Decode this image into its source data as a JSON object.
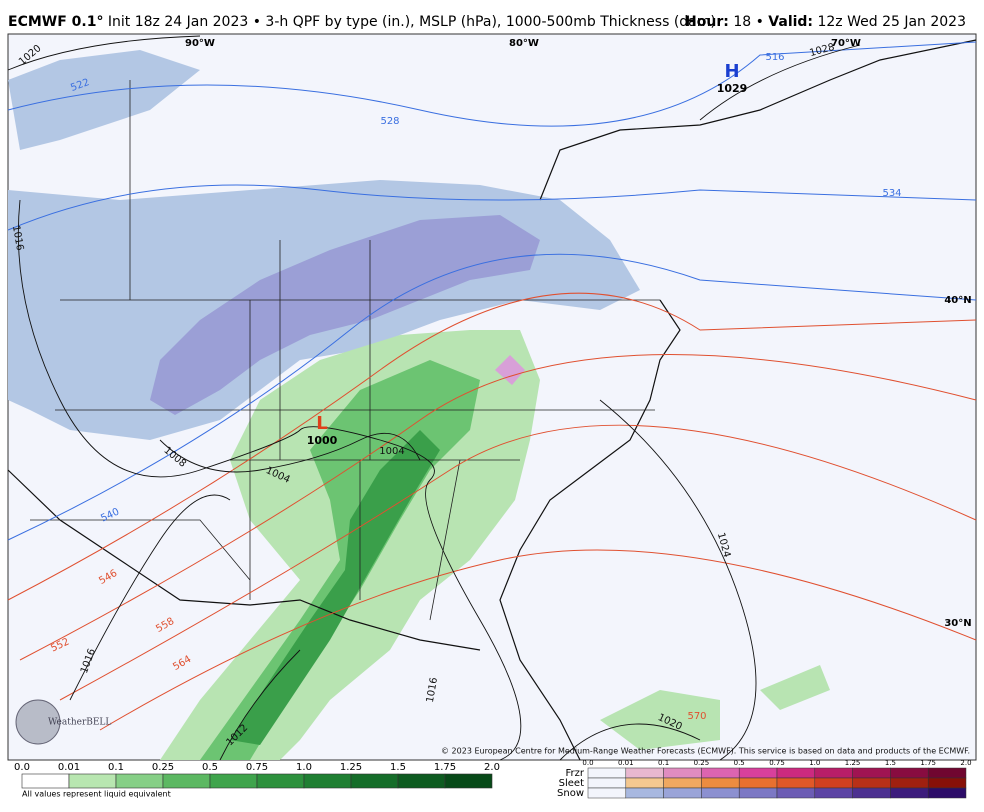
{
  "header": {
    "model": "ECMWF 0.1°",
    "description": "Init 18z 24 Jan 2023 • 3-h QPF by type (in.), MSLP (hPa), 1000-500mb Thickness (dam)",
    "right": [
      "Hour:",
      "18 •",
      "Valid:",
      "12z Wed 25 Jan 2023"
    ]
  },
  "map_labels": [
    "90°W",
    "80°W",
    "70°W",
    "40°N",
    "30°N"
  ],
  "pressure_centers": [
    {
      "letter": "H",
      "value": "1029"
    },
    {
      "letter": "L",
      "value": "1000"
    }
  ],
  "contour_labels": [
    "1020",
    "522",
    "528",
    "516",
    "1028",
    "534",
    "1016",
    "1008",
    "1004",
    "1004",
    "540",
    "546",
    "552",
    "558",
    "564",
    "1016",
    "1012",
    "1016",
    "1024",
    "1020",
    "570"
  ],
  "copyright": "© 2023 European Centre for Medium-Range Weather Forecasts (ECMWF). This service is based on data and products of the ECMWF.",
  "logo": "WeatherBELL",
  "legend": {
    "rain_ticks": [
      "0.0",
      "0.01",
      "0.1",
      "0.25",
      "0.5",
      "0.75",
      "1.0",
      "1.25",
      "1.5",
      "1.75",
      "2.0"
    ],
    "note": "All values represent liquid equivalent",
    "types": [
      "Frzr",
      "Sleet",
      "Snow"
    ],
    "type_ticks": [
      "0.0",
      "0.01",
      "0.1",
      "0.25",
      "0.5",
      "0.75",
      "1.0",
      "1.25",
      "1.5",
      "1.75",
      "2.0"
    ]
  }
}
